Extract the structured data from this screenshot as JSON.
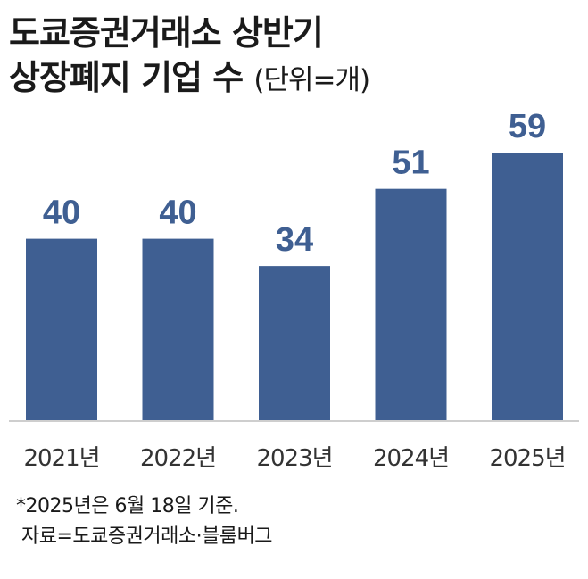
{
  "title": {
    "line1": "도쿄증권거래소 상반기",
    "line2": "상장폐지 기업 수",
    "unit": "(단위=개)"
  },
  "colors": {
    "bar": "#3f5f92",
    "value_label": "#3f5f92",
    "tick_label": "#333333",
    "axis": "#bdbdbd"
  },
  "chart_data": {
    "type": "bar",
    "categories": [
      "2021년",
      "2022년",
      "2023년",
      "2024년",
      "2025년"
    ],
    "values": [
      40,
      40,
      34,
      51,
      59
    ],
    "title": "도쿄증권거래소 상반기 상장폐지 기업 수",
    "unit": "(단위=개)",
    "ylim": [
      0,
      59
    ],
    "grid": false,
    "legend": "none"
  },
  "footnote": {
    "note": "*2025년은 6월 18일 기준.",
    "source": "자료=도쿄증권거래소·블룸버그"
  }
}
